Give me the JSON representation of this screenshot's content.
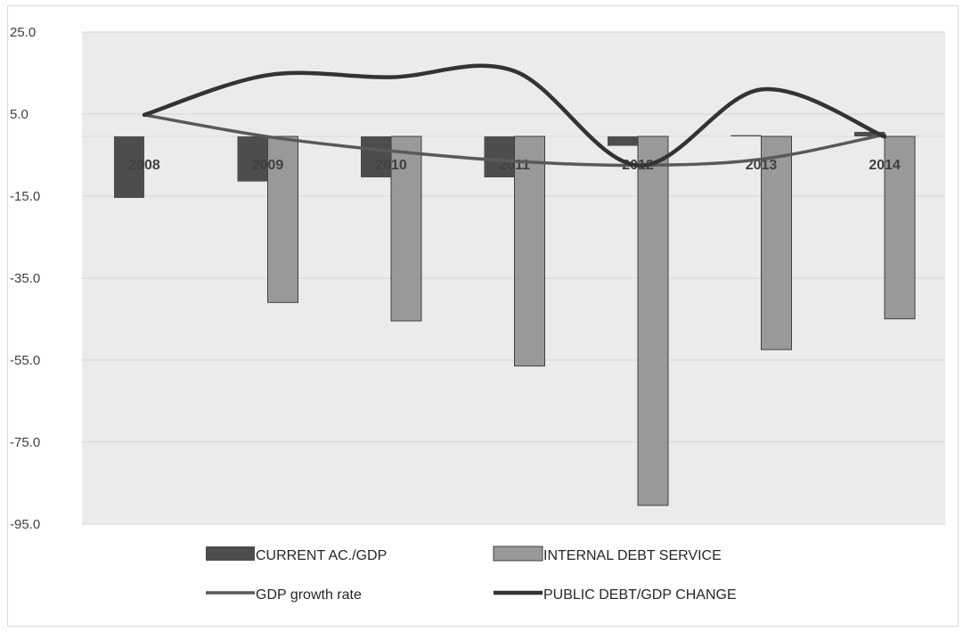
{
  "chart_data": {
    "type": "bar",
    "categories": [
      "2008",
      "2009",
      "2010",
      "2011",
      "2012",
      "2013",
      "2014"
    ],
    "ylim": [
      -95,
      25
    ],
    "yticks": [
      "25.0",
      "5.0",
      "-15.0",
      "-35.0",
      "-55.0",
      "-75.0",
      "-95.0"
    ],
    "ytick_values": [
      25,
      5,
      -15,
      -35,
      -55,
      -75,
      -95
    ],
    "grid": true,
    "legend_position": "bottom",
    "series": [
      {
        "name": "CURRENT AC./GDP",
        "kind": "bar",
        "color": "#4d4d4d",
        "values": [
          -15.0,
          -11.0,
          -10.0,
          -10.0,
          -2.3,
          0.3,
          1.1
        ]
      },
      {
        "name": "INTERNAL DEBT SERVICE",
        "kind": "bar",
        "color": "#999999",
        "values": [
          0,
          -40.5,
          -45.0,
          -56.0,
          -90.0,
          -52.0,
          -44.5
        ]
      },
      {
        "name": "GDP growth rate",
        "kind": "line",
        "color": "#595959",
        "values": [
          4.8,
          -0.5,
          -4.0,
          -6.5,
          -7.5,
          -6.0,
          0.0
        ]
      },
      {
        "name": "PUBLIC DEBT/GDP CHANGE",
        "kind": "line",
        "color": "#333333",
        "values": [
          4.8,
          14.5,
          14.0,
          15.5,
          -7.5,
          11.0,
          -0.5
        ]
      }
    ]
  }
}
